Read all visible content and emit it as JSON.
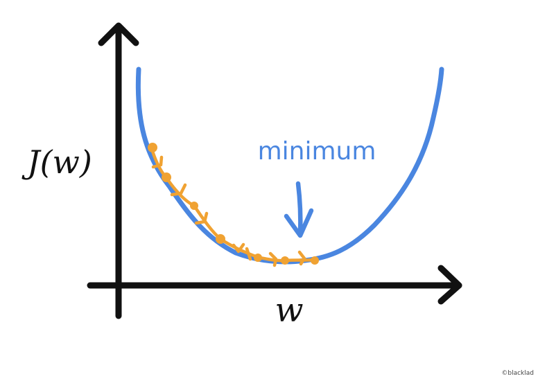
{
  "labels": {
    "y_axis": "J(w)",
    "x_axis": "w",
    "annotation": "minimum",
    "watermark": "©blacklad"
  },
  "colors": {
    "axis": "#111111",
    "curve": "#4a86e0",
    "steps": "#f0a232",
    "annotation": "#4a86e0",
    "watermark": "#444444"
  }
}
